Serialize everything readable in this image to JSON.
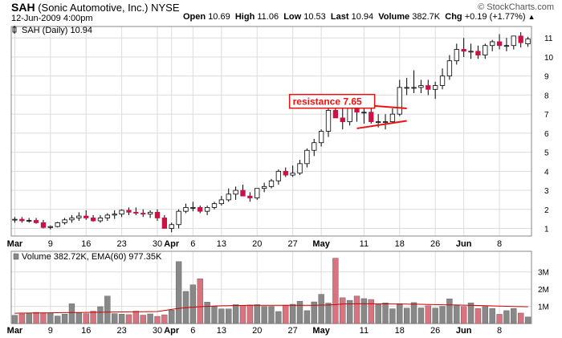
{
  "header": {
    "symbol": "SAH",
    "company": "(Sonic Automotive, Inc.)",
    "exchange": "NYSE",
    "datetime": "12-Jun-2009 4:00pm",
    "open_label": "Open",
    "open": "10.69",
    "high_label": "High",
    "high": "11.06",
    "low_label": "Low",
    "low": "10.53",
    "last_label": "Last",
    "last": "10.94",
    "volume_label": "Volume",
    "volume": "382.7K",
    "chg_label": "Chg",
    "chg": "+0.19 (+1.77%)",
    "chg_icon": "up-triangle-icon",
    "watermark": "© StockCharts.com"
  },
  "colors": {
    "up": "#ffffff",
    "down": "#cc1144",
    "volume_up": "#888888",
    "volume_down": "#d8737f",
    "grid": "#dcdcdc",
    "ema": "#cc0000",
    "annotation": "#ee1111"
  },
  "chart_data": [
    {
      "type": "candlestick",
      "title": "SAH (Daily) 10.94",
      "x": [
        "2009-03-02",
        "2009-03-03",
        "2009-03-04",
        "2009-03-05",
        "2009-03-06",
        "2009-03-09",
        "2009-03-10",
        "2009-03-11",
        "2009-03-12",
        "2009-03-13",
        "2009-03-16",
        "2009-03-17",
        "2009-03-18",
        "2009-03-19",
        "2009-03-20",
        "2009-03-23",
        "2009-03-24",
        "2009-03-25",
        "2009-03-26",
        "2009-03-27",
        "2009-03-30",
        "2009-03-31",
        "2009-04-01",
        "2009-04-02",
        "2009-04-03",
        "2009-04-06",
        "2009-04-07",
        "2009-04-08",
        "2009-04-09",
        "2009-04-13",
        "2009-04-14",
        "2009-04-15",
        "2009-04-16",
        "2009-04-17",
        "2009-04-20",
        "2009-04-21",
        "2009-04-22",
        "2009-04-23",
        "2009-04-24",
        "2009-04-27",
        "2009-04-28",
        "2009-04-29",
        "2009-04-30",
        "2009-05-01",
        "2009-05-04",
        "2009-05-05",
        "2009-05-06",
        "2009-05-07",
        "2009-05-08",
        "2009-05-11",
        "2009-05-12",
        "2009-05-13",
        "2009-05-14",
        "2009-05-15",
        "2009-05-18",
        "2009-05-19",
        "2009-05-20",
        "2009-05-21",
        "2009-05-22",
        "2009-05-26",
        "2009-05-27",
        "2009-05-28",
        "2009-05-29",
        "2009-06-01",
        "2009-06-02",
        "2009-06-03",
        "2009-06-04",
        "2009-06-05",
        "2009-06-08",
        "2009-06-09",
        "2009-06-10",
        "2009-06-11",
        "2009-06-12"
      ],
      "open": [
        1.45,
        1.48,
        1.4,
        1.42,
        1.3,
        1.05,
        1.1,
        1.3,
        1.45,
        1.55,
        1.65,
        1.55,
        1.4,
        1.55,
        1.7,
        1.75,
        1.95,
        1.85,
        1.8,
        1.75,
        1.85,
        1.55,
        1.0,
        1.2,
        1.9,
        2.1,
        2.1,
        1.9,
        2.1,
        2.3,
        2.5,
        2.8,
        3.0,
        2.7,
        2.6,
        3.1,
        3.2,
        3.5,
        4.0,
        3.8,
        3.9,
        4.4,
        5.1,
        5.5,
        6.1,
        7.2,
        6.8,
        6.6,
        7.3,
        7.1,
        7.1,
        6.6,
        6.6,
        6.6,
        7.0,
        8.4,
        8.4,
        8.4,
        8.5,
        8.3,
        8.5,
        9.0,
        9.8,
        10.4,
        10.3,
        10.3,
        10.1,
        10.6,
        10.8,
        10.6,
        10.6,
        11.1,
        10.69
      ],
      "high": [
        1.6,
        1.6,
        1.55,
        1.55,
        1.45,
        1.15,
        1.35,
        1.55,
        1.7,
        1.85,
        1.95,
        1.7,
        1.7,
        1.8,
        1.95,
        2.0,
        2.1,
        2.1,
        2.0,
        1.95,
        2.0,
        1.7,
        1.3,
        2.0,
        2.3,
        2.4,
        2.2,
        2.2,
        2.4,
        2.7,
        3.1,
        3.2,
        3.3,
        2.9,
        3.1,
        3.4,
        3.6,
        4.1,
        4.2,
        4.3,
        4.6,
        5.2,
        5.7,
        6.2,
        7.5,
        8.0,
        7.5,
        7.4,
        7.6,
        7.6,
        7.4,
        7.0,
        7.0,
        7.3,
        8.8,
        8.9,
        9.3,
        8.8,
        8.8,
        8.7,
        9.4,
        10.1,
        10.7,
        11.0,
        10.7,
        10.6,
        10.7,
        10.9,
        11.2,
        11.0,
        11.0,
        11.3,
        11.06
      ],
      "low": [
        1.3,
        1.3,
        1.3,
        1.25,
        1.0,
        0.95,
        1.05,
        1.2,
        1.3,
        1.4,
        1.45,
        1.35,
        1.3,
        1.4,
        1.5,
        1.6,
        1.7,
        1.7,
        1.6,
        1.55,
        1.4,
        1.0,
        0.8,
        1.0,
        1.8,
        1.9,
        1.8,
        1.7,
        2.0,
        2.2,
        2.4,
        2.5,
        2.7,
        2.4,
        2.5,
        2.9,
        3.1,
        3.3,
        3.7,
        3.7,
        3.8,
        4.2,
        4.8,
        5.3,
        5.8,
        6.8,
        6.2,
        6.4,
        6.6,
        6.5,
        6.5,
        6.3,
        6.2,
        6.5,
        6.9,
        8.0,
        8.1,
        8.1,
        8.0,
        7.8,
        8.3,
        8.8,
        9.6,
        10.0,
        9.9,
        9.9,
        9.9,
        10.3,
        10.4,
        10.3,
        10.4,
        10.5,
        10.53
      ],
      "close": [
        1.48,
        1.4,
        1.42,
        1.3,
        1.05,
        1.1,
        1.3,
        1.45,
        1.55,
        1.65,
        1.55,
        1.4,
        1.55,
        1.7,
        1.75,
        1.95,
        1.85,
        1.8,
        1.75,
        1.85,
        1.55,
        1.0,
        1.2,
        1.9,
        2.1,
        2.1,
        1.9,
        2.1,
        2.3,
        2.5,
        2.8,
        3.0,
        2.7,
        2.6,
        3.1,
        3.2,
        3.5,
        4.0,
        3.8,
        3.9,
        4.4,
        5.1,
        5.5,
        6.1,
        7.2,
        6.8,
        6.6,
        7.3,
        7.1,
        7.1,
        6.6,
        6.6,
        6.6,
        7.0,
        8.4,
        8.4,
        8.4,
        8.5,
        8.3,
        8.5,
        9.0,
        9.8,
        10.4,
        10.3,
        10.3,
        10.1,
        10.6,
        10.8,
        10.6,
        10.6,
        11.1,
        10.75,
        10.94
      ],
      "ylim": [
        0.6,
        11.6
      ],
      "yticks": [
        "1",
        "2",
        "3",
        "4",
        "5",
        "6",
        "7",
        "8",
        "9",
        "10",
        "11"
      ],
      "xtick_labels": [
        {
          "label": "Mar",
          "x": "2009-03-02",
          "bold": true
        },
        {
          "label": "9",
          "x": "2009-03-09",
          "bold": false
        },
        {
          "label": "16",
          "x": "2009-03-16",
          "bold": false
        },
        {
          "label": "23",
          "x": "2009-03-23",
          "bold": false
        },
        {
          "label": "30",
          "x": "2009-03-30",
          "bold": false
        },
        {
          "label": "Apr",
          "x": "2009-04-01",
          "bold": true
        },
        {
          "label": "6",
          "x": "2009-04-06",
          "bold": false
        },
        {
          "label": "13",
          "x": "2009-04-13",
          "bold": false
        },
        {
          "label": "20",
          "x": "2009-04-20",
          "bold": false
        },
        {
          "label": "27",
          "x": "2009-04-27",
          "bold": false
        },
        {
          "label": "May",
          "x": "2009-05-01",
          "bold": true
        },
        {
          "label": "11",
          "x": "2009-05-11",
          "bold": false
        },
        {
          "label": "18",
          "x": "2009-05-18",
          "bold": false
        },
        {
          "label": "26",
          "x": "2009-05-26",
          "bold": false
        },
        {
          "label": "Jun",
          "x": "2009-06-01",
          "bold": true
        },
        {
          "label": "8",
          "x": "2009-06-08",
          "bold": false
        }
      ],
      "trendlines": [
        {
          "from": {
            "x": "2009-05-08",
            "y": 7.5
          },
          "to": {
            "x": "2009-05-19",
            "y": 7.3
          }
        },
        {
          "from": {
            "x": "2009-05-08",
            "y": 6.25
          },
          "to": {
            "x": "2009-05-19",
            "y": 6.65
          }
        }
      ],
      "annotation": {
        "text": "resistance 7.65",
        "x": "2009-04-27",
        "y": 7.65
      },
      "grid": true
    },
    {
      "type": "bar",
      "title": "Volume 382.72K, EMA(60) 977.35K",
      "volume": [
        480000,
        560000,
        580000,
        650000,
        610000,
        620000,
        440000,
        550000,
        1150000,
        620000,
        580000,
        720000,
        980000,
        1600000,
        580000,
        550000,
        520000,
        720000,
        490000,
        560000,
        420000,
        510000,
        780000,
        3600000,
        1870000,
        2250000,
        2600000,
        1250000,
        1000000,
        850000,
        850000,
        1100000,
        1050000,
        1080000,
        1100000,
        1000000,
        1000000,
        700000,
        1070000,
        1120000,
        1300000,
        750000,
        1260000,
        1700000,
        1190000,
        3800000,
        1500000,
        1350000,
        1600000,
        1450000,
        1400000,
        1120000,
        1200000,
        860000,
        1160000,
        900000,
        1220000,
        910000,
        1040000,
        900000,
        1000000,
        1440000,
        1040000,
        990000,
        1200000,
        880000,
        990000,
        880000,
        540000,
        750000,
        880000,
        610000,
        382720
      ],
      "ema": [
        600000,
        605000,
        610000,
        615000,
        620000,
        625000,
        630000,
        635000,
        640000,
        645000,
        650000,
        655000,
        660000,
        665000,
        670000,
        675000,
        680000,
        685000,
        690000,
        695000,
        700000,
        760000,
        820000,
        880000,
        920000,
        950000,
        980000,
        1000000,
        1020000,
        1030000,
        1040000,
        1050000,
        1055000,
        1058000,
        1060000,
        1060000,
        1060000,
        1058000,
        1058000,
        1060000,
        1065000,
        1062000,
        1065000,
        1075000,
        1080000,
        1100000,
        1140000,
        1145000,
        1150000,
        1150000,
        1150000,
        1150000,
        1145000,
        1140000,
        1135000,
        1130000,
        1125000,
        1120000,
        1110000,
        1100000,
        1090000,
        1085000,
        1078000,
        1070000,
        1062000,
        1050000,
        1040000,
        1025000,
        1015000,
        1005000,
        995000,
        985000,
        977350
      ],
      "ylim": [
        0,
        4200000
      ],
      "yticks": [
        {
          "label": "1M",
          "value": 1000000
        },
        {
          "label": "2M",
          "value": 2000000
        },
        {
          "label": "3M",
          "value": 3000000
        }
      ]
    }
  ]
}
